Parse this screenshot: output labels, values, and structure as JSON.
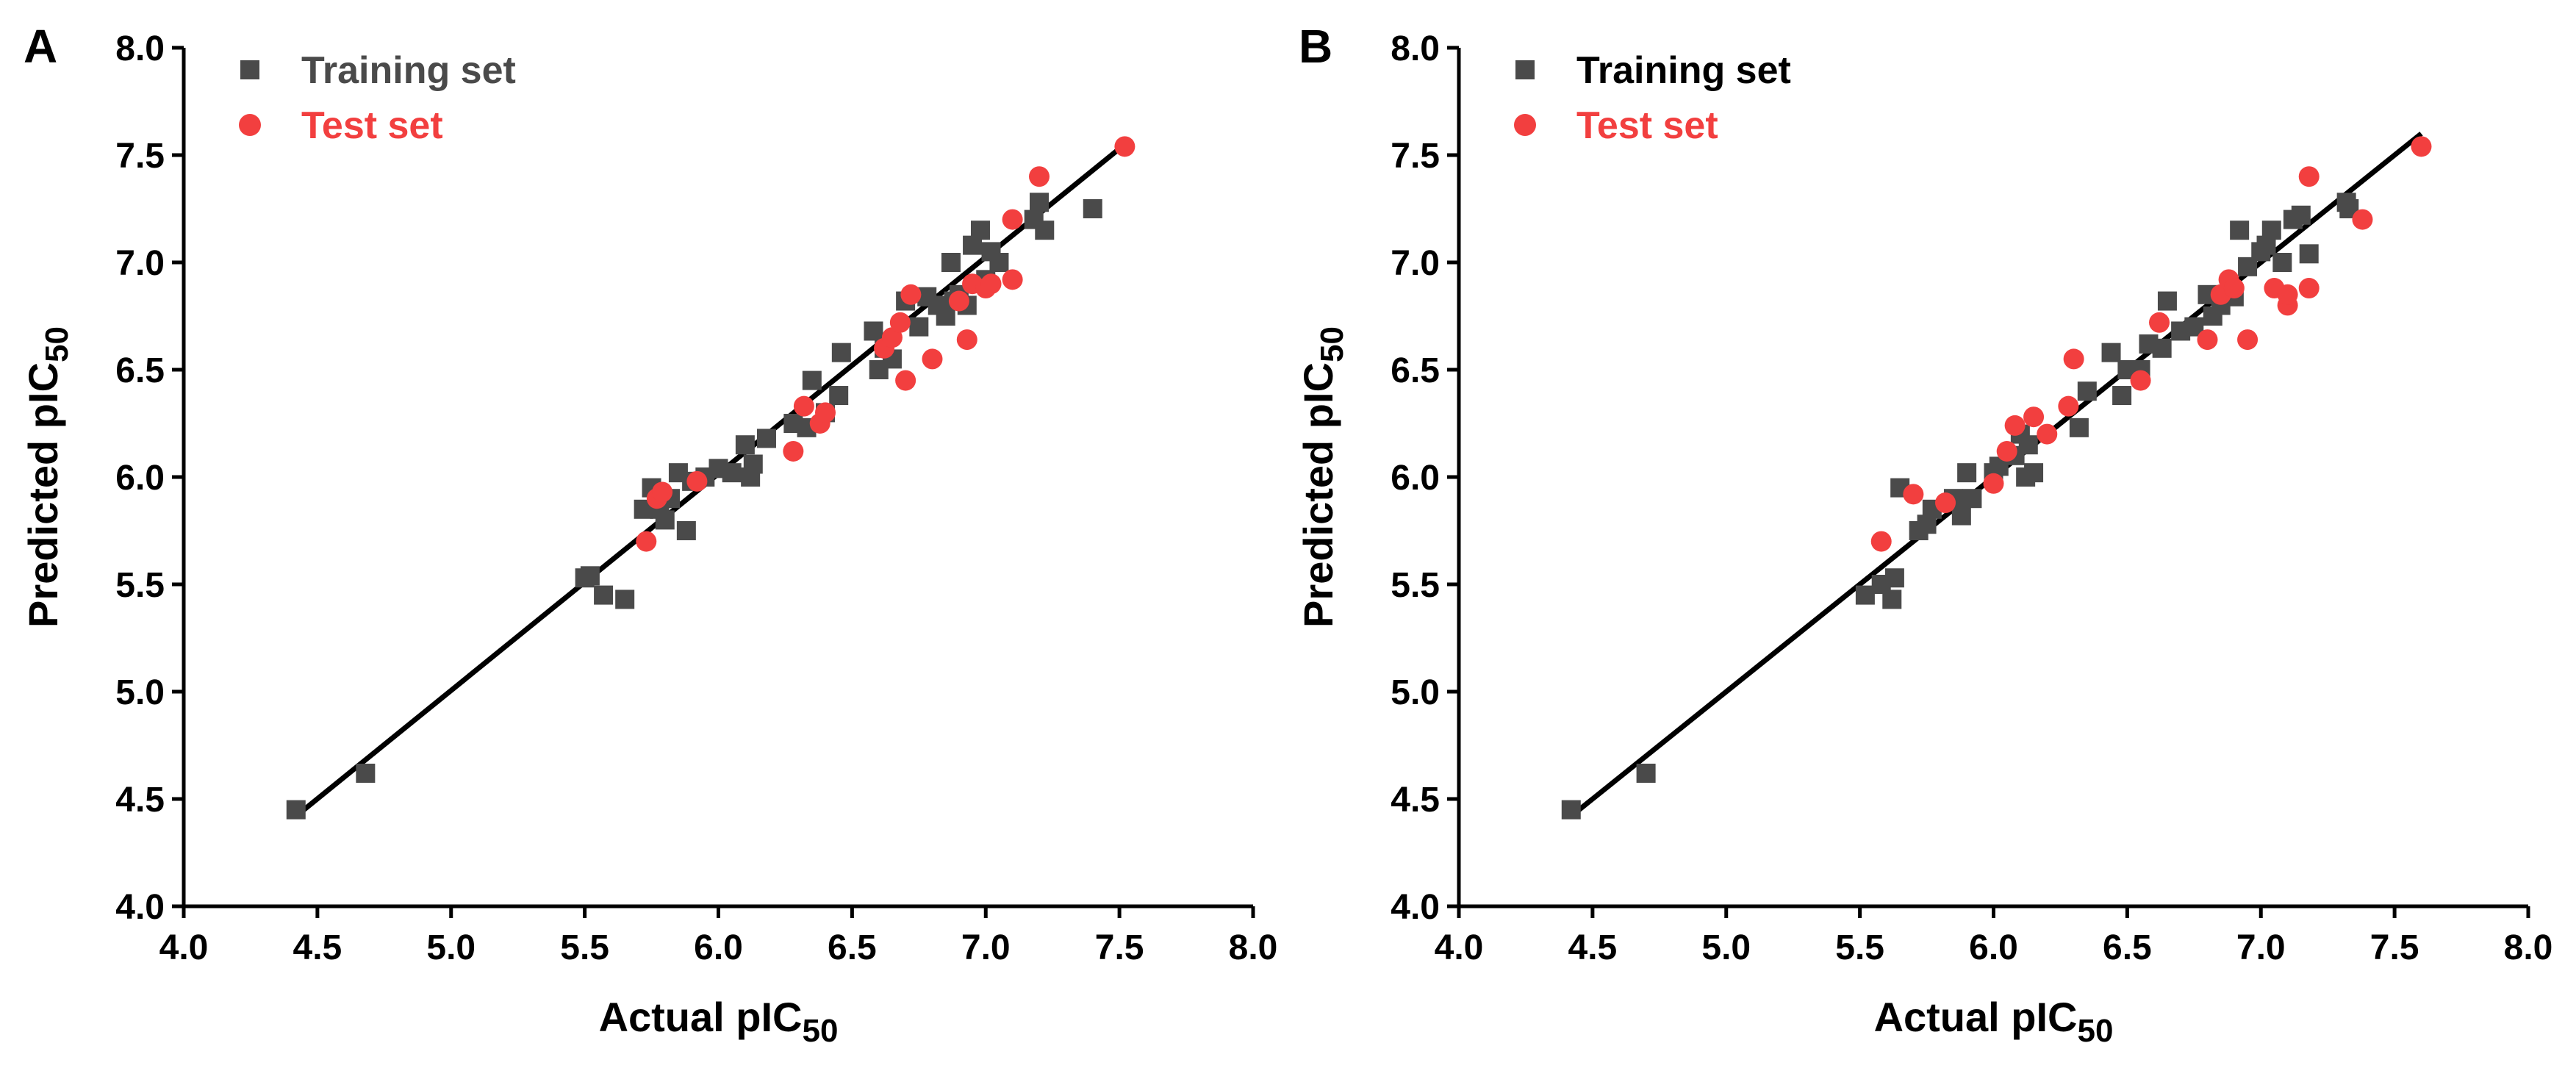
{
  "figure": {
    "marker_colors": {
      "training": "#4a4a4a",
      "test": "#f23f3f"
    }
  },
  "chart_data": [
    {
      "panel_label": "A",
      "type": "scatter",
      "xlabel_main": "Actual pIC",
      "xlabel_sub": "50",
      "ylabel_main": "Predicted pIC",
      "ylabel_sub": "50",
      "xlim": [
        4.0,
        8.0
      ],
      "ylim": [
        4.0,
        8.0
      ],
      "x_ticks": [
        "4.0",
        "4.5",
        "5.0",
        "5.5",
        "6.0",
        "6.5",
        "7.0",
        "7.5",
        "8.0"
      ],
      "y_ticks": [
        "4.0",
        "4.5",
        "5.0",
        "5.5",
        "6.0",
        "6.5",
        "7.0",
        "7.5",
        "8.0"
      ],
      "grid": false,
      "legend_position": "top-left",
      "legend": [
        {
          "label": "Training set",
          "marker": "square",
          "color": "#4a4a4a",
          "text_color": "#4a4a4a"
        },
        {
          "label": "Test set",
          "marker": "circle",
          "color": "#f23f3f",
          "text_color": "#f23f3f"
        }
      ],
      "fit_line": {
        "x": [
          4.42,
          7.52
        ],
        "y": [
          4.42,
          7.55
        ]
      },
      "series": [
        {
          "name": "Training set",
          "marker": "square",
          "points": [
            [
              4.42,
              4.45
            ],
            [
              4.68,
              4.62
            ],
            [
              5.5,
              5.53
            ],
            [
              5.52,
              5.54
            ],
            [
              5.57,
              5.45
            ],
            [
              5.65,
              5.43
            ],
            [
              5.72,
              5.85
            ],
            [
              5.75,
              5.95
            ],
            [
              5.78,
              5.85
            ],
            [
              5.8,
              5.8
            ],
            [
              5.82,
              5.9
            ],
            [
              5.85,
              6.02
            ],
            [
              5.88,
              5.75
            ],
            [
              5.9,
              5.98
            ],
            [
              5.95,
              6.0
            ],
            [
              6.0,
              6.04
            ],
            [
              6.05,
              6.02
            ],
            [
              6.1,
              6.15
            ],
            [
              6.12,
              6.0
            ],
            [
              6.13,
              6.06
            ],
            [
              6.18,
              6.18
            ],
            [
              6.28,
              6.25
            ],
            [
              6.33,
              6.23
            ],
            [
              6.35,
              6.45
            ],
            [
              6.4,
              6.3
            ],
            [
              6.45,
              6.38
            ],
            [
              6.46,
              6.58
            ],
            [
              6.58,
              6.68
            ],
            [
              6.6,
              6.5
            ],
            [
              6.62,
              6.6
            ],
            [
              6.65,
              6.55
            ],
            [
              6.7,
              6.82
            ],
            [
              6.75,
              6.7
            ],
            [
              6.78,
              6.84
            ],
            [
              6.82,
              6.8
            ],
            [
              6.85,
              6.75
            ],
            [
              6.88,
              6.82
            ],
            [
              6.87,
              7.0
            ],
            [
              6.9,
              6.85
            ],
            [
              6.93,
              6.8
            ],
            [
              6.95,
              7.08
            ],
            [
              6.98,
              7.15
            ],
            [
              7.0,
              6.92
            ],
            [
              7.02,
              7.05
            ],
            [
              7.05,
              7.0
            ],
            [
              7.18,
              7.2
            ],
            [
              7.2,
              7.28
            ],
            [
              7.22,
              7.15
            ],
            [
              7.4,
              7.25
            ]
          ]
        },
        {
          "name": "Test set",
          "marker": "circle",
          "points": [
            [
              5.73,
              5.7
            ],
            [
              5.77,
              5.9
            ],
            [
              5.79,
              5.93
            ],
            [
              5.92,
              5.98
            ],
            [
              6.28,
              6.12
            ],
            [
              6.32,
              6.33
            ],
            [
              6.38,
              6.25
            ],
            [
              6.4,
              6.3
            ],
            [
              6.62,
              6.6
            ],
            [
              6.65,
              6.65
            ],
            [
              6.68,
              6.72
            ],
            [
              6.7,
              6.45
            ],
            [
              6.72,
              6.85
            ],
            [
              6.8,
              6.55
            ],
            [
              6.9,
              6.82
            ],
            [
              6.93,
              6.64
            ],
            [
              6.95,
              6.9
            ],
            [
              7.0,
              6.88
            ],
            [
              7.02,
              6.9
            ],
            [
              7.1,
              6.92
            ],
            [
              7.1,
              7.2
            ],
            [
              7.2,
              7.4
            ],
            [
              7.52,
              7.54
            ]
          ]
        }
      ]
    },
    {
      "panel_label": "B",
      "type": "scatter",
      "xlabel_main": "Actual pIC",
      "xlabel_sub": "50",
      "ylabel_main": "Predicted pIC",
      "ylabel_sub": "50",
      "xlim": [
        4.0,
        8.0
      ],
      "ylim": [
        4.0,
        8.0
      ],
      "x_ticks": [
        "4.0",
        "4.5",
        "5.0",
        "5.5",
        "6.0",
        "6.5",
        "7.0",
        "7.5",
        "8.0"
      ],
      "y_ticks": [
        "4.0",
        "4.5",
        "5.0",
        "5.5",
        "6.0",
        "6.5",
        "7.0",
        "7.5",
        "8.0"
      ],
      "grid": false,
      "legend_position": "top-left",
      "legend": [
        {
          "label": "Training set",
          "marker": "square",
          "color": "#4a4a4a",
          "text_color": "#000000"
        },
        {
          "label": "Test set",
          "marker": "circle",
          "color": "#f23f3f",
          "text_color": "#f23f3f"
        }
      ],
      "fit_line": {
        "x": [
          4.42,
          7.6
        ],
        "y": [
          4.42,
          7.6
        ]
      },
      "series": [
        {
          "name": "Training set",
          "marker": "square",
          "points": [
            [
              4.42,
              4.45
            ],
            [
              4.7,
              4.62
            ],
            [
              5.52,
              5.45
            ],
            [
              5.58,
              5.5
            ],
            [
              5.62,
              5.43
            ],
            [
              5.63,
              5.53
            ],
            [
              5.65,
              5.95
            ],
            [
              5.72,
              5.75
            ],
            [
              5.75,
              5.78
            ],
            [
              5.77,
              5.85
            ],
            [
              5.85,
              5.9
            ],
            [
              5.88,
              5.82
            ],
            [
              5.9,
              6.02
            ],
            [
              5.92,
              5.9
            ],
            [
              6.0,
              6.02
            ],
            [
              6.02,
              6.05
            ],
            [
              6.08,
              6.1
            ],
            [
              6.1,
              6.2
            ],
            [
              6.12,
              6.0
            ],
            [
              6.13,
              6.15
            ],
            [
              6.15,
              6.02
            ],
            [
              6.32,
              6.23
            ],
            [
              6.35,
              6.4
            ],
            [
              6.44,
              6.58
            ],
            [
              6.48,
              6.38
            ],
            [
              6.5,
              6.5
            ],
            [
              6.55,
              6.5
            ],
            [
              6.58,
              6.62
            ],
            [
              6.63,
              6.6
            ],
            [
              6.65,
              6.82
            ],
            [
              6.7,
              6.68
            ],
            [
              6.75,
              6.7
            ],
            [
              6.8,
              6.85
            ],
            [
              6.82,
              6.75
            ],
            [
              6.85,
              6.8
            ],
            [
              6.9,
              6.84
            ],
            [
              6.92,
              7.15
            ],
            [
              6.95,
              6.98
            ],
            [
              7.0,
              7.05
            ],
            [
              7.02,
              7.08
            ],
            [
              7.04,
              7.15
            ],
            [
              7.08,
              7.0
            ],
            [
              7.12,
              7.2
            ],
            [
              7.15,
              7.22
            ],
            [
              7.18,
              7.04
            ],
            [
              7.32,
              7.28
            ],
            [
              7.33,
              7.25
            ]
          ]
        },
        {
          "name": "Test set",
          "marker": "circle",
          "points": [
            [
              5.58,
              5.7
            ],
            [
              5.7,
              5.92
            ],
            [
              5.82,
              5.88
            ],
            [
              6.0,
              5.97
            ],
            [
              6.05,
              6.12
            ],
            [
              6.08,
              6.24
            ],
            [
              6.15,
              6.28
            ],
            [
              6.2,
              6.2
            ],
            [
              6.28,
              6.33
            ],
            [
              6.3,
              6.55
            ],
            [
              6.55,
              6.45
            ],
            [
              6.62,
              6.72
            ],
            [
              6.8,
              6.64
            ],
            [
              6.85,
              6.85
            ],
            [
              6.88,
              6.92
            ],
            [
              6.9,
              6.88
            ],
            [
              6.95,
              6.64
            ],
            [
              7.05,
              6.88
            ],
            [
              7.1,
              6.8
            ],
            [
              7.1,
              6.85
            ],
            [
              7.18,
              6.88
            ],
            [
              7.18,
              7.4
            ],
            [
              7.38,
              7.2
            ],
            [
              7.6,
              7.54
            ]
          ]
        }
      ]
    }
  ]
}
